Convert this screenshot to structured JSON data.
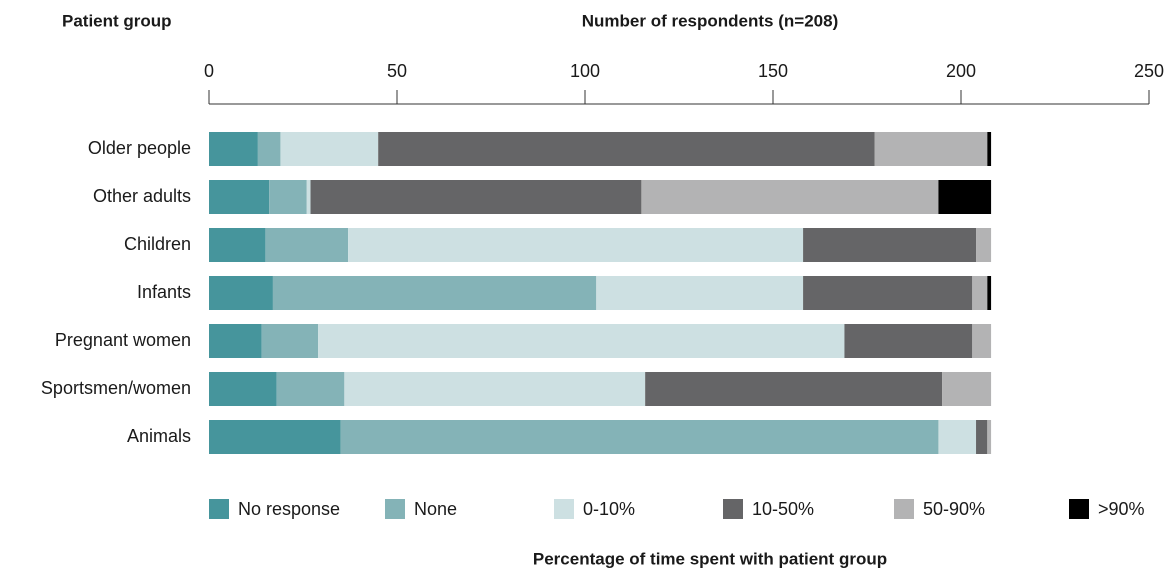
{
  "chart_data": {
    "type": "stacked_barh",
    "y_label": "Patient group",
    "title": "Number of respondents (n=208)",
    "x_label": "Percentage of time spent with patient group",
    "categories": [
      "Older people",
      "Other adults",
      "Children",
      "Infants",
      "Pregnant women",
      "Sportsmen/women",
      "Animals"
    ],
    "series": [
      {
        "name": "No response",
        "color": "#46959c",
        "values": [
          13,
          16,
          15,
          17,
          14,
          18,
          35
        ]
      },
      {
        "name": "None",
        "color": "#84b3b7",
        "values": [
          6,
          10,
          22,
          86,
          15,
          18,
          159
        ]
      },
      {
        "name": "0-10%",
        "color": "#cde0e2",
        "values": [
          26,
          1,
          121,
          55,
          140,
          80,
          10
        ]
      },
      {
        "name": "10-50%",
        "color": "#656567",
        "values": [
          132,
          88,
          46,
          45,
          34,
          79,
          3
        ]
      },
      {
        "name": "50-90%",
        "color": "#b3b3b4",
        "values": [
          30,
          79,
          4,
          4,
          5,
          13,
          1
        ]
      },
      {
        "name": ">90%",
        "color": "#000000",
        "values": [
          1,
          14,
          0,
          1,
          0,
          0,
          0
        ]
      }
    ],
    "xlim": [
      0,
      250
    ],
    "xticks": [
      0,
      50,
      100,
      150,
      200,
      250
    ]
  }
}
